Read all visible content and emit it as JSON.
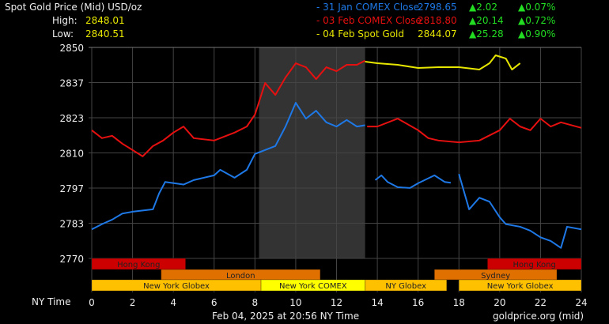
{
  "header": {
    "title": "Spot Gold Price (Mid) USD/oz",
    "high_label": "High:",
    "high_value": "2848.01",
    "low_label": "Low:",
    "low_value": "2840.51"
  },
  "legend": [
    {
      "label": "- 31 Jan COMEX Close",
      "price": "2798.65",
      "change": "▲2.02",
      "pct": "▲0.07%",
      "color": "#1e78e6"
    },
    {
      "label": "- 03 Feb COMEX Close",
      "price": "2818.80",
      "change": "▲20.14",
      "pct": "▲0.72%",
      "color": "#e61010"
    },
    {
      "label": "- 04 Feb Spot Gold",
      "price": "2844.07",
      "change": "▲25.28",
      "pct": "▲0.90%",
      "color": "#e6e600"
    }
  ],
  "footer": {
    "timestamp": "Feb 04, 2025 at 20:56 NY Time",
    "source": "goldprice.org (mid)",
    "x_axis_label": "NY Time"
  },
  "chart_data": {
    "type": "line",
    "xlim": [
      0,
      24
    ],
    "ylim": [
      2770,
      2850
    ],
    "x_ticks": [
      0,
      2,
      4,
      6,
      8,
      10,
      12,
      14,
      16,
      18,
      20,
      22,
      24
    ],
    "y_ticks": [
      "2850",
      "2837",
      "2823",
      "2810",
      "2797",
      "2783",
      "2770"
    ],
    "grid": true,
    "comex_shaded_hours": [
      8.2,
      13.4
    ],
    "series": [
      {
        "name": "31 Jan COMEX Close",
        "color": "#1e78e6",
        "segments": [
          [
            [
              0,
              2781
            ],
            [
              0.5,
              2783
            ],
            [
              1,
              2784.7
            ],
            [
              1.5,
              2787
            ],
            [
              2,
              2787.7
            ],
            [
              3,
              2788.6
            ],
            [
              3.3,
              2794.6
            ],
            [
              3.6,
              2799
            ],
            [
              4.5,
              2798
            ],
            [
              5,
              2799.7
            ],
            [
              6,
              2801.5
            ],
            [
              6.3,
              2803.6
            ],
            [
              7,
              2800.6
            ],
            [
              7.6,
              2803.6
            ],
            [
              8,
              2809.6
            ],
            [
              9,
              2812.6
            ],
            [
              9.5,
              2820
            ],
            [
              10,
              2829
            ],
            [
              10.5,
              2823
            ],
            [
              11,
              2826
            ],
            [
              11.5,
              2821.6
            ],
            [
              12,
              2820
            ],
            [
              12.5,
              2822.5
            ],
            [
              13,
              2820
            ],
            [
              13.4,
              2820.5
            ]
          ],
          [
            [
              13.9,
              2799.7
            ],
            [
              14.2,
              2801.5
            ],
            [
              14.5,
              2799
            ],
            [
              15,
              2797
            ],
            [
              15.6,
              2796.7
            ],
            [
              16,
              2798.5
            ],
            [
              16.8,
              2801.5
            ],
            [
              17.3,
              2799
            ],
            [
              17.6,
              2798.7
            ]
          ],
          [
            [
              18,
              2802
            ],
            [
              18.5,
              2788.6
            ],
            [
              19,
              2793
            ],
            [
              19.5,
              2791.5
            ],
            [
              20,
              2785.6
            ],
            [
              20.3,
              2783
            ],
            [
              21,
              2782
            ],
            [
              21.5,
              2780.5
            ],
            [
              22,
              2778
            ],
            [
              22.5,
              2776.6
            ],
            [
              23,
              2774
            ],
            [
              23.3,
              2782
            ],
            [
              24,
              2781
            ]
          ]
        ]
      },
      {
        "name": "03 Feb COMEX Close",
        "color": "#e61010",
        "segments": [
          [
            [
              0,
              2818.6
            ],
            [
              0.5,
              2815.6
            ],
            [
              1,
              2816.5
            ],
            [
              1.5,
              2813.5
            ],
            [
              2.5,
              2808.7
            ],
            [
              3,
              2812.6
            ],
            [
              3.5,
              2814.7
            ],
            [
              4,
              2817.7
            ],
            [
              4.5,
              2820
            ],
            [
              5,
              2815.6
            ],
            [
              6,
              2814.7
            ],
            [
              7,
              2817.7
            ],
            [
              7.6,
              2820
            ],
            [
              8,
              2824.5
            ],
            [
              8.5,
              2836.5
            ],
            [
              9,
              2832
            ],
            [
              9.5,
              2838.6
            ],
            [
              10,
              2844
            ],
            [
              10.5,
              2842.5
            ],
            [
              11,
              2838
            ],
            [
              11.5,
              2842.5
            ],
            [
              12,
              2841
            ],
            [
              12.5,
              2843.4
            ],
            [
              13,
              2843.4
            ],
            [
              13.4,
              2845
            ]
          ],
          [
            [
              13.5,
              2820
            ],
            [
              14,
              2820
            ],
            [
              15,
              2823
            ],
            [
              16,
              2818.6
            ],
            [
              16.5,
              2815.6
            ],
            [
              17,
              2814.7
            ],
            [
              18,
              2814
            ],
            [
              19,
              2814.7
            ],
            [
              20,
              2818.6
            ],
            [
              20.5,
              2823
            ],
            [
              21,
              2820
            ],
            [
              21.5,
              2818.6
            ],
            [
              22,
              2823
            ],
            [
              22.5,
              2820
            ],
            [
              23,
              2821.6
            ],
            [
              24,
              2819.5
            ]
          ]
        ]
      },
      {
        "name": "04 Feb Spot Gold",
        "color": "#e6e600",
        "segments": [
          [
            [
              13.4,
              2844.6
            ],
            [
              14,
              2844
            ],
            [
              15,
              2843.4
            ],
            [
              16,
              2842.2
            ],
            [
              17,
              2842.5
            ],
            [
              18,
              2842.5
            ],
            [
              19,
              2841.6
            ],
            [
              19.5,
              2844
            ],
            [
              19.8,
              2847
            ],
            [
              20.3,
              2845.8
            ],
            [
              20.6,
              2841.6
            ],
            [
              21,
              2844
            ]
          ]
        ]
      }
    ],
    "sessions": [
      {
        "label": "Hong Kong",
        "row": 0,
        "start": 0,
        "end": 4.6,
        "color": "#cc0000"
      },
      {
        "label": "Hong Kong",
        "row": 0,
        "start": 19.4,
        "end": 24,
        "color": "#cc0000"
      },
      {
        "label": "London",
        "row": 1,
        "start": 3.4,
        "end": 11.2,
        "color": "#e07000"
      },
      {
        "label": "Sydney",
        "row": 1,
        "start": 16.8,
        "end": 22.8,
        "color": "#e07000"
      },
      {
        "label": "New York Globex",
        "row": 2,
        "start": 0,
        "end": 8.3,
        "color": "#ffc000"
      },
      {
        "label": "New York COMEX",
        "row": 2,
        "start": 8.3,
        "end": 13.4,
        "color": "#ffff00"
      },
      {
        "label": "NY Globex",
        "row": 2,
        "start": 13.4,
        "end": 17.4,
        "color": "#ffc000"
      },
      {
        "label": "New York Globex",
        "row": 2,
        "start": 18,
        "end": 24,
        "color": "#ffc000"
      }
    ]
  }
}
